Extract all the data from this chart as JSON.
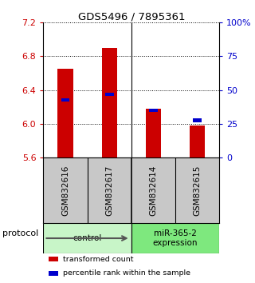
{
  "title": "GDS5496 / 7895361",
  "samples": [
    "GSM832616",
    "GSM832617",
    "GSM832614",
    "GSM832615"
  ],
  "bar_values": [
    6.65,
    6.9,
    6.18,
    5.98
  ],
  "bar_bottom": 5.6,
  "percentile_values": [
    6.28,
    6.35,
    6.16,
    6.04
  ],
  "groups": [
    {
      "label": "control",
      "spans": [
        0,
        1
      ],
      "color": "#c8f5c8"
    },
    {
      "label": "miR-365-2\nexpression",
      "spans": [
        2,
        3
      ],
      "color": "#7ee87e"
    }
  ],
  "bar_color": "#cc0000",
  "percentile_color": "#0000cc",
  "ylim_left": [
    5.6,
    7.2
  ],
  "ylim_right": [
    0,
    100
  ],
  "yticks_left": [
    5.6,
    6.0,
    6.4,
    6.8,
    7.2
  ],
  "yticks_right": [
    0,
    25,
    50,
    75,
    100
  ],
  "yticks_right_labels": [
    "0",
    "25",
    "50",
    "75",
    "100%"
  ],
  "background_color": "#ffffff",
  "sample_bg": "#c8c8c8",
  "protocol_label": "protocol",
  "legend_items": [
    {
      "color": "#cc0000",
      "label": "transformed count"
    },
    {
      "color": "#0000cc",
      "label": "percentile rank within the sample"
    }
  ]
}
